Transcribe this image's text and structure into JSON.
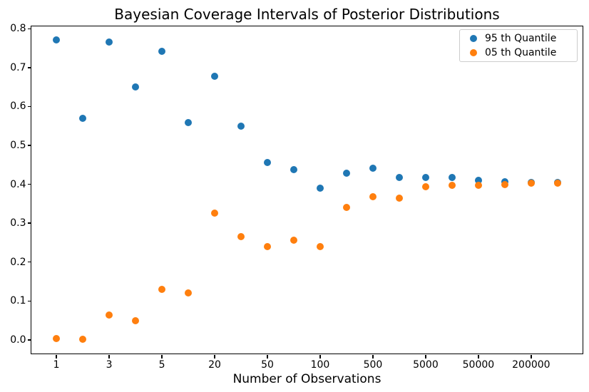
{
  "title": "Bayesian Coverage Intervals of Posterior Distributions",
  "axes": {
    "xlabel": "Number of Observations",
    "y_tick_labels": [
      "0.0",
      "0.1",
      "0.2",
      "0.3",
      "0.4",
      "0.5",
      "0.6",
      "0.7",
      "0.8"
    ],
    "x_tick_labels": [
      "1",
      "3",
      "5",
      "20",
      "50",
      "100",
      "500",
      "5000",
      "50000",
      "200000"
    ]
  },
  "legend": {
    "position": "upper right",
    "entries": [
      {
        "label": "95 th Quantile",
        "color": "#1f77b4"
      },
      {
        "label": "05 th Quantile",
        "color": "#ff7f0e"
      }
    ]
  },
  "colors": {
    "series_95th": "#1f77b4",
    "series_05th": "#ff7f0e",
    "text": "#000000",
    "spine": "#000000",
    "legend_border": "#cccccc",
    "background": "#ffffff"
  },
  "chart_data": {
    "type": "scatter",
    "title": "Bayesian Coverage Intervals of Posterior Distributions",
    "xlabel": "Number of Observations",
    "ylabel": "",
    "grid": false,
    "legend_position": "upper right",
    "x_scale": "categorical (log-spaced observation counts, evenly spaced markers)",
    "point_count_per_series": 20,
    "x_ticks": [
      {
        "index": 0,
        "label": "1"
      },
      {
        "index": 2,
        "label": "3"
      },
      {
        "index": 4,
        "label": "5"
      },
      {
        "index": 6,
        "label": "20"
      },
      {
        "index": 8,
        "label": "50"
      },
      {
        "index": 10,
        "label": "100"
      },
      {
        "index": 12,
        "label": "500"
      },
      {
        "index": 14,
        "label": "5000"
      },
      {
        "index": 16,
        "label": "50000"
      },
      {
        "index": 18,
        "label": "200000"
      }
    ],
    "y_ticks": [
      0.0,
      0.1,
      0.2,
      0.3,
      0.4,
      0.5,
      0.6,
      0.7,
      0.8
    ],
    "xlim": [
      -0.95,
      19.95
    ],
    "ylim": [
      -0.035,
      0.806
    ],
    "series": [
      {
        "name": "95 th Quantile",
        "color": "#1f77b4",
        "values": [
          0.771,
          0.57,
          0.765,
          0.651,
          0.741,
          0.559,
          0.677,
          0.55,
          0.456,
          0.438,
          0.39,
          0.429,
          0.441,
          0.418,
          0.417,
          0.418,
          0.41,
          0.407,
          0.404,
          0.404
        ]
      },
      {
        "name": "05 th Quantile",
        "color": "#ff7f0e",
        "values": [
          0.003,
          0.001,
          0.064,
          0.049,
          0.13,
          0.12,
          0.326,
          0.266,
          0.24,
          0.256,
          0.24,
          0.34,
          0.368,
          0.365,
          0.393,
          0.398,
          0.398,
          0.4,
          0.402,
          0.402
        ]
      }
    ]
  }
}
